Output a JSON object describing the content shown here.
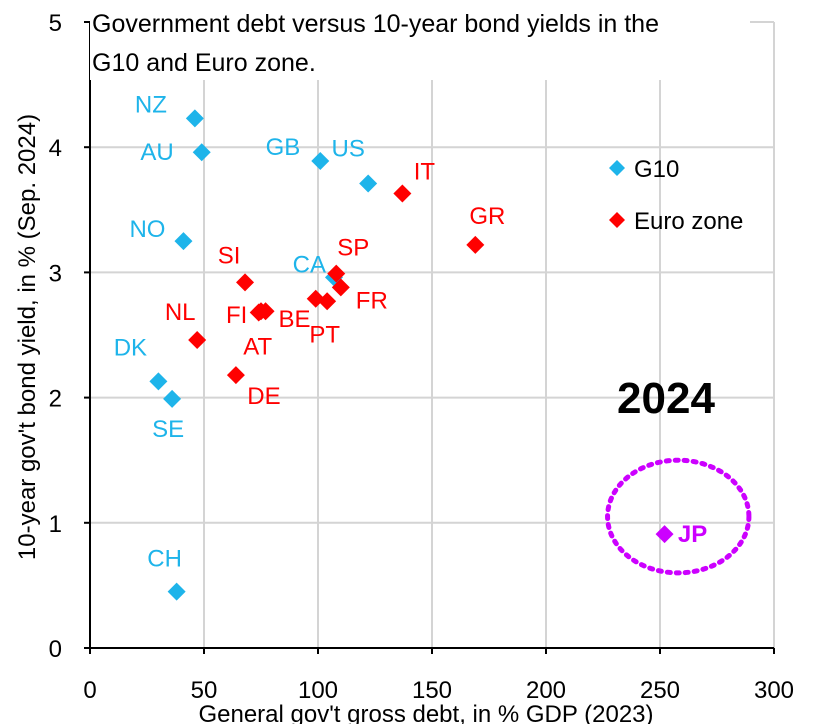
{
  "chart_data": {
    "type": "scatter",
    "title": "Government debt versus 10-year bond yields in the G10 and Euro zone.",
    "xlabel": "General gov't gross debt, in % GDP (2023)",
    "ylabel": "10-year gov't bond yield, in % (Sep. 2024)",
    "xlim": [
      0,
      300
    ],
    "ylim": [
      0,
      5
    ],
    "x_ticks": [
      0,
      50,
      100,
      150,
      200,
      250,
      300
    ],
    "y_ticks": [
      0,
      1,
      2,
      3,
      4,
      5
    ],
    "grid": true,
    "legend_position": "top-right",
    "annotation": "2024",
    "series": [
      {
        "name": "G10",
        "color": "#1EB4EA",
        "points": [
          {
            "label": "NZ",
            "x": 46,
            "y": 4.23
          },
          {
            "label": "AU",
            "x": 49,
            "y": 3.96
          },
          {
            "label": "GB",
            "x": 101,
            "y": 3.89
          },
          {
            "label": "US",
            "x": 122,
            "y": 3.71
          },
          {
            "label": "NO",
            "x": 41,
            "y": 3.25
          },
          {
            "label": "CA",
            "x": 107,
            "y": 2.96
          },
          {
            "label": "DK",
            "x": 30,
            "y": 2.13
          },
          {
            "label": "SE",
            "x": 36,
            "y": 1.99
          },
          {
            "label": "CH",
            "x": 38,
            "y": 0.45
          }
        ]
      },
      {
        "name": "Euro zone",
        "color": "#FF0000",
        "points": [
          {
            "label": "IT",
            "x": 137,
            "y": 3.63
          },
          {
            "label": "GR",
            "x": 169,
            "y": 3.22
          },
          {
            "label": "SI",
            "x": 68,
            "y": 2.92
          },
          {
            "label": "SP",
            "x": 108,
            "y": 2.99
          },
          {
            "label": "FR",
            "x": 110,
            "y": 2.88
          },
          {
            "label": "FI",
            "x": 75,
            "y": 2.69
          },
          {
            "label": "BE",
            "x": 77,
            "y": 2.69
          },
          {
            "label": "AT",
            "x": 74,
            "y": 2.68
          },
          {
            "label": "PT",
            "x": 99,
            "y": 2.79
          },
          {
            "label": "PT",
            "x": 104,
            "y": 2.77
          },
          {
            "label": "NL",
            "x": 47,
            "y": 2.46
          },
          {
            "label": "DE",
            "x": 64,
            "y": 2.18
          }
        ]
      },
      {
        "name": "",
        "color": "#CC00FF",
        "points": [
          {
            "label": "JP",
            "x": 252,
            "y": 0.91
          }
        ]
      }
    ],
    "highlight_circle": {
      "cx": 258,
      "cy": 1.05,
      "rx": 31,
      "ry": 0.45,
      "color": "#CC00FF"
    }
  }
}
